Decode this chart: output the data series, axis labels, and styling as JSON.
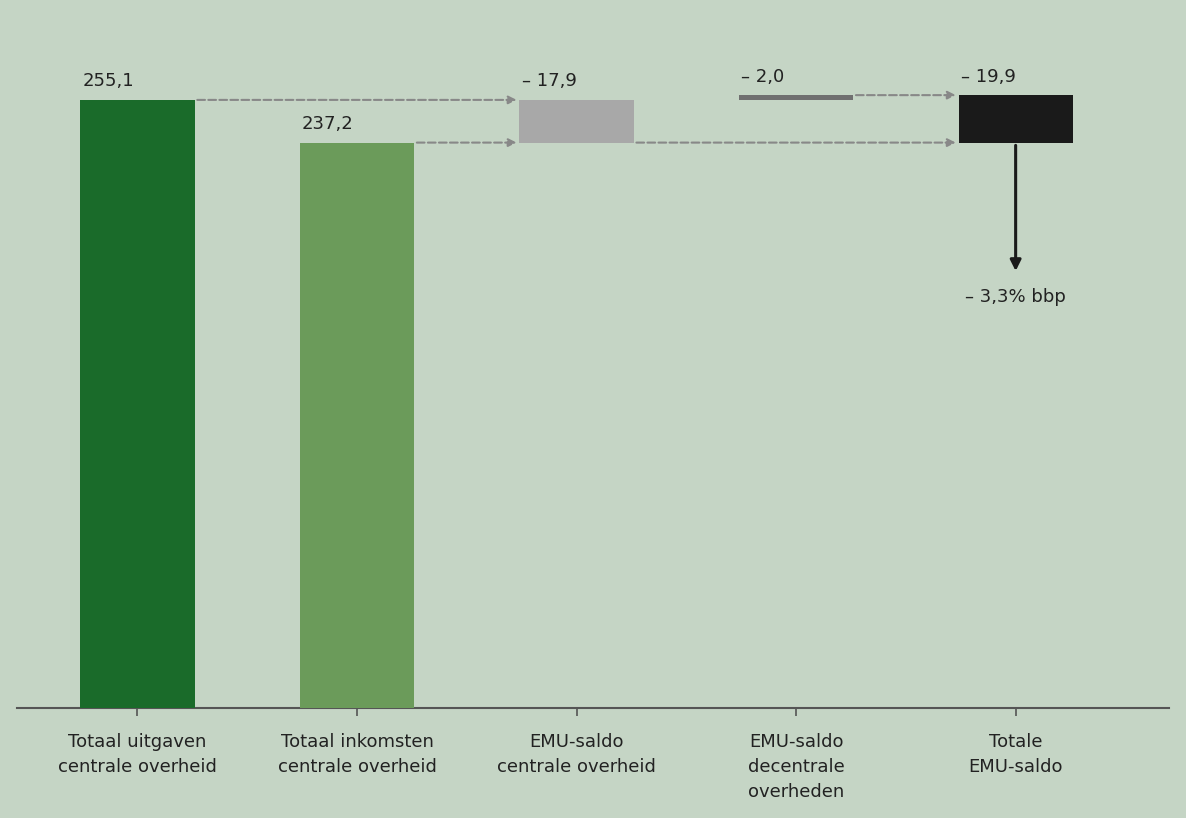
{
  "background_color": "#c5d5c5",
  "bar_colors": [
    "#1a6b2a",
    "#6b9b5a",
    "#a8a8a8",
    "#707070",
    "#1a1a1a"
  ],
  "bar_bottoms": [
    0,
    0,
    237.2,
    255.1,
    237.2
  ],
  "bar_heights": [
    255.1,
    237.2,
    17.9,
    2.0,
    19.9
  ],
  "bar_positions": [
    0,
    1,
    2,
    3,
    4
  ],
  "bar_width": 0.52,
  "bar_labels": [
    "255,1",
    "237,2",
    "– 17,9",
    "– 2,0",
    "– 19,9"
  ],
  "annotation_bbp": "– 3,3% bbp",
  "ylim": [
    0,
    290
  ],
  "xlim": [
    -0.55,
    4.7
  ],
  "axis_line_color": "#555555",
  "dashed_arrow_color": "#888888",
  "solid_arrow_color": "#1a1a1a",
  "label_fontsize": 13,
  "value_fontsize": 13,
  "xtick_labels": [
    "Totaal uitgaven\ncentrale overheid",
    "Totaal inkomsten\ncentrale overheid",
    "EMU-saldo\ncentrale overheid",
    "EMU-saldo\ndecentrale\noverheden",
    "Totale\nEMU-saldo"
  ]
}
